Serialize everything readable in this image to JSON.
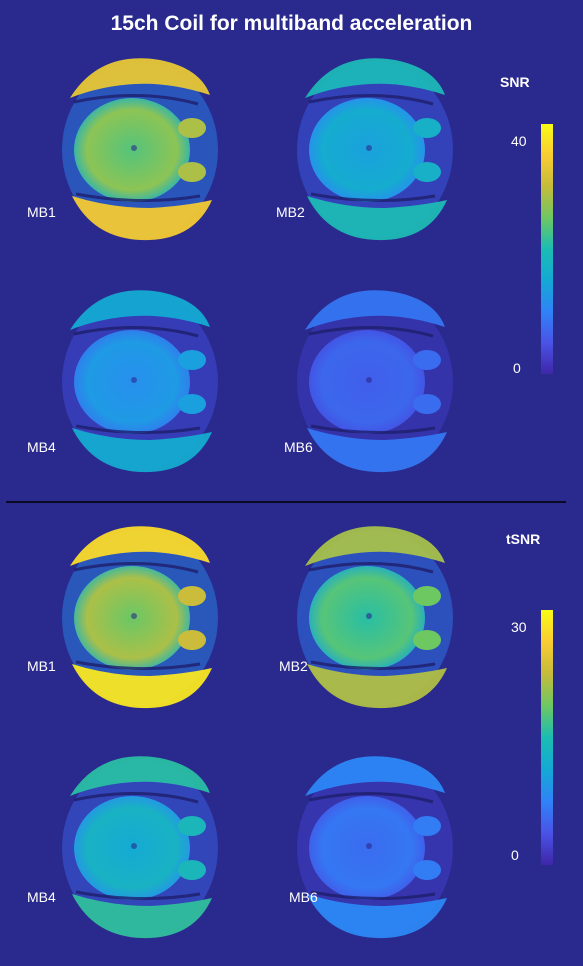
{
  "title": "15ch Coil for multiband acceleration",
  "snr": {
    "metric": "SNR",
    "cbar_max": "40",
    "cbar_min": "0",
    "labels": [
      "MB1",
      "MB2",
      "MB4",
      "MB6"
    ],
    "levels": [
      0.9,
      0.55,
      0.45,
      0.25
    ]
  },
  "tsnr": {
    "metric": "tSNR",
    "cbar_max": "30",
    "cbar_min": "0",
    "labels": [
      "MB1",
      "MB2",
      "MB4",
      "MB6"
    ],
    "levels": [
      0.95,
      0.8,
      0.6,
      0.3
    ]
  },
  "colors": {
    "background": "#2a2a8e",
    "low": "#3e26a8",
    "mid": "#1bbcb3",
    "high": "#f9fb15"
  }
}
